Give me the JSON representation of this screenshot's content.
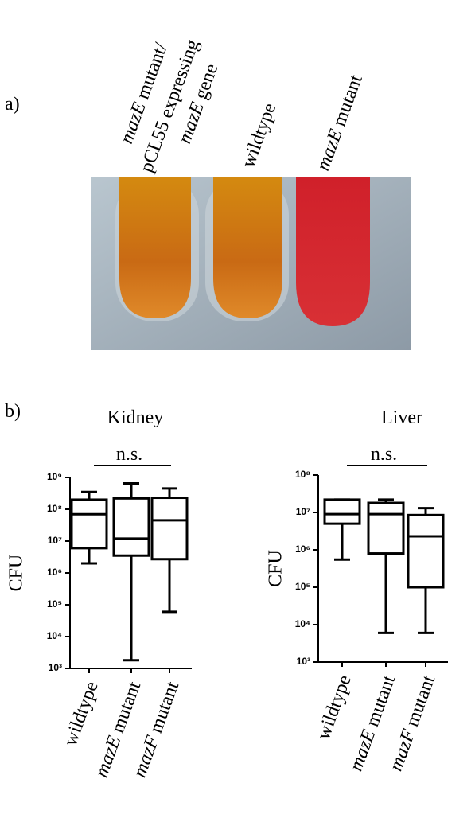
{
  "panel_a": {
    "label": "a)",
    "tube_labels": [
      [
        [
          {
            "text": "mazE",
            "italic": true
          },
          {
            "text": " mutant/",
            "italic": false
          }
        ],
        [
          {
            "text": "pCL55 expressing",
            "italic": false
          }
        ],
        [
          {
            "text": "mazE",
            "italic": true
          },
          {
            "text": " gene",
            "italic": false
          }
        ]
      ],
      [
        [
          {
            "text": "wildtype",
            "italic": false
          }
        ]
      ],
      [
        [
          {
            "text": "mazE",
            "italic": true
          },
          {
            "text": " mutant",
            "italic": false
          }
        ]
      ]
    ]
  },
  "panel_b": {
    "label": "b)"
  },
  "chart_data": [
    {
      "type": "box",
      "title": "Kidney",
      "ylabel": "CFU",
      "annotation": "n.s.",
      "categories": [
        "wildtype",
        "mazE mutant",
        "mazF mutant"
      ],
      "categories_italic_first_word": [
        false,
        true,
        true
      ],
      "log_y": true,
      "ylim": [
        1000,
        1000000000
      ],
      "yticks": [
        {
          "value": 1000,
          "label": "10³"
        },
        {
          "value": 10000,
          "label": "10⁴"
        },
        {
          "value": 100000,
          "label": "10⁵"
        },
        {
          "value": 1000000,
          "label": "10⁶"
        },
        {
          "value": 10000000,
          "label": "10⁷"
        },
        {
          "value": 100000000,
          "label": "10⁸"
        },
        {
          "value": 1000000000,
          "label": "10⁹"
        }
      ],
      "min": [
        2000000,
        1800,
        60000
      ],
      "q1": [
        6000000,
        3500000,
        2700000
      ],
      "median": [
        70000000,
        12000000,
        45000000
      ],
      "q3": [
        200000000,
        220000000,
        230000000
      ],
      "max": [
        350000000,
        650000000,
        450000000
      ]
    },
    {
      "type": "box",
      "title": "Liver",
      "ylabel": "CFU",
      "annotation": "n.s.",
      "categories": [
        "wildtype",
        "mazE mutant",
        "mazF mutant"
      ],
      "categories_italic_first_word": [
        false,
        true,
        true
      ],
      "log_y": true,
      "ylim": [
        1000,
        100000000
      ],
      "yticks": [
        {
          "value": 1000,
          "label": "10³"
        },
        {
          "value": 10000,
          "label": "10⁴"
        },
        {
          "value": 100000,
          "label": "10⁵"
        },
        {
          "value": 1000000,
          "label": "10⁶"
        },
        {
          "value": 10000000,
          "label": "10⁷"
        },
        {
          "value": 100000000,
          "label": "10⁸"
        }
      ],
      "min": [
        550000,
        6000,
        6000
      ],
      "q1": [
        5000000,
        800000,
        100000
      ],
      "median": [
        9000000,
        9000000,
        2300000
      ],
      "q3": [
        22000000,
        18000000,
        8500000
      ],
      "max": [
        22000000,
        22000000,
        13000000
      ]
    }
  ]
}
